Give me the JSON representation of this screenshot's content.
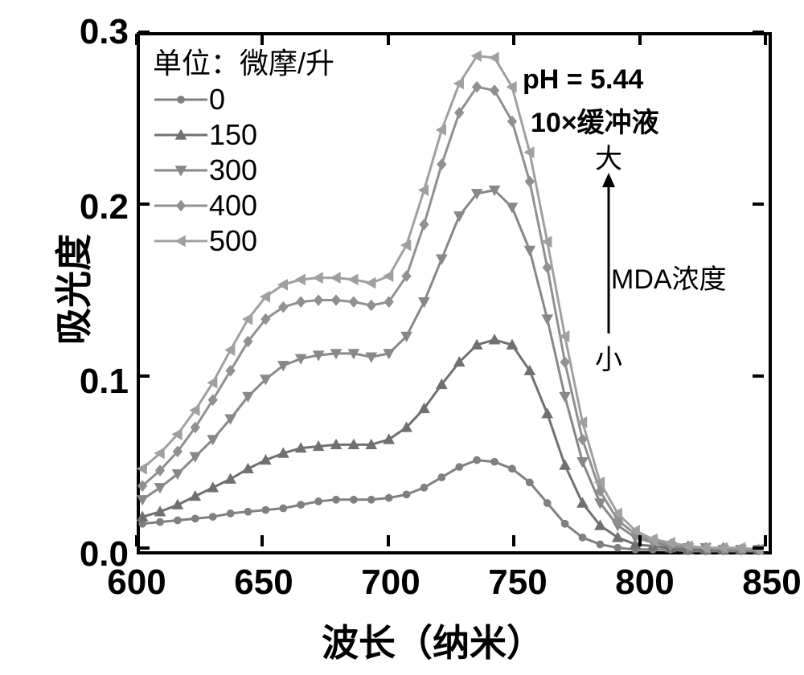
{
  "chart": {
    "type": "scatter-line",
    "xlabel": "波长（纳米）",
    "ylabel": "吸光度",
    "xlim": [
      600,
      850
    ],
    "ylim": [
      0.0,
      0.3
    ],
    "xticks": [
      600,
      650,
      700,
      750,
      800,
      850
    ],
    "yticks": [
      0.0,
      0.1,
      0.2,
      0.3
    ],
    "ytick_labels": [
      "0.0",
      "0.1",
      "0.2",
      "0.3"
    ],
    "background_color": "#ffffff",
    "border_color": "#000000",
    "border_width": 4,
    "label_fontsize": 46,
    "tick_fontsize": 44,
    "legend_fontsize": 36,
    "legend_title": "单位：微摩/升",
    "annotation_ph": "pH = 5.44",
    "annotation_buffer": "10×缓冲液",
    "annotation_big": "大",
    "annotation_conc": "MDA浓度",
    "annotation_small": "小",
    "series": [
      {
        "label": "0",
        "color": "#808080",
        "marker": "circle",
        "marker_size": 11,
        "line_width": 3,
        "x": [
          601,
          608,
          615,
          622,
          629,
          636,
          643,
          650,
          657,
          664,
          671,
          678,
          685,
          692,
          699,
          706,
          713,
          720,
          727,
          734,
          741,
          748,
          755,
          762,
          769,
          776,
          783,
          790,
          797,
          804,
          811,
          818,
          825,
          832,
          839,
          846
        ],
        "y": [
          0.016,
          0.017,
          0.018,
          0.019,
          0.02,
          0.022,
          0.023,
          0.024,
          0.025,
          0.027,
          0.029,
          0.03,
          0.03,
          0.03,
          0.031,
          0.033,
          0.037,
          0.043,
          0.049,
          0.053,
          0.052,
          0.048,
          0.04,
          0.028,
          0.016,
          0.008,
          0.004,
          0.002,
          0.001,
          0.001,
          0.001,
          0.0,
          0.0,
          0.0,
          0.0,
          0.0
        ]
      },
      {
        "label": "150",
        "color": "#707070",
        "marker": "triangle-up",
        "marker_size": 13,
        "line_width": 3,
        "x": [
          601,
          608,
          615,
          622,
          629,
          636,
          643,
          650,
          657,
          664,
          671,
          678,
          685,
          692,
          699,
          706,
          713,
          720,
          727,
          734,
          741,
          748,
          755,
          762,
          769,
          776,
          783,
          790,
          797,
          804,
          811,
          818,
          825,
          832,
          839,
          846
        ],
        "y": [
          0.02,
          0.023,
          0.027,
          0.032,
          0.037,
          0.042,
          0.048,
          0.053,
          0.057,
          0.06,
          0.061,
          0.062,
          0.062,
          0.062,
          0.065,
          0.072,
          0.083,
          0.097,
          0.11,
          0.12,
          0.123,
          0.12,
          0.105,
          0.08,
          0.05,
          0.028,
          0.015,
          0.008,
          0.004,
          0.003,
          0.002,
          0.001,
          0.001,
          0.001,
          0.001,
          0.001
        ]
      },
      {
        "label": "300",
        "color": "#888888",
        "marker": "triangle-down",
        "marker_size": 13,
        "line_width": 3,
        "x": [
          601,
          608,
          615,
          622,
          629,
          636,
          643,
          650,
          657,
          664,
          671,
          678,
          685,
          692,
          699,
          706,
          713,
          720,
          727,
          734,
          741,
          748,
          755,
          762,
          769,
          776,
          783,
          790,
          797,
          804,
          811,
          818,
          825,
          832,
          839,
          846
        ],
        "y": [
          0.03,
          0.037,
          0.045,
          0.055,
          0.065,
          0.077,
          0.09,
          0.1,
          0.108,
          0.112,
          0.114,
          0.115,
          0.115,
          0.113,
          0.115,
          0.125,
          0.145,
          0.17,
          0.195,
          0.208,
          0.21,
          0.2,
          0.175,
          0.135,
          0.09,
          0.052,
          0.028,
          0.015,
          0.008,
          0.005,
          0.003,
          0.002,
          0.002,
          0.001,
          0.001,
          0.001
        ]
      },
      {
        "label": "400",
        "color": "#909090",
        "marker": "diamond",
        "marker_size": 13,
        "line_width": 3,
        "x": [
          601,
          608,
          615,
          622,
          629,
          636,
          643,
          650,
          657,
          664,
          671,
          678,
          685,
          692,
          699,
          706,
          713,
          720,
          727,
          734,
          741,
          748,
          755,
          762,
          769,
          776,
          783,
          790,
          797,
          804,
          811,
          818,
          825,
          832,
          839,
          846
        ],
        "y": [
          0.038,
          0.047,
          0.058,
          0.072,
          0.088,
          0.105,
          0.122,
          0.135,
          0.142,
          0.145,
          0.146,
          0.146,
          0.145,
          0.143,
          0.145,
          0.16,
          0.19,
          0.225,
          0.255,
          0.27,
          0.268,
          0.25,
          0.215,
          0.165,
          0.11,
          0.065,
          0.035,
          0.018,
          0.01,
          0.006,
          0.004,
          0.003,
          0.002,
          0.002,
          0.001,
          0.001
        ]
      },
      {
        "label": "500",
        "color": "#a0a0a0",
        "marker": "triangle-left",
        "marker_size": 13,
        "line_width": 3,
        "x": [
          601,
          608,
          615,
          622,
          629,
          636,
          643,
          650,
          657,
          664,
          671,
          678,
          685,
          692,
          699,
          706,
          713,
          720,
          727,
          734,
          741,
          748,
          755,
          762,
          769,
          776,
          783,
          790,
          797,
          804,
          811,
          818,
          825,
          832,
          839,
          846
        ],
        "y": [
          0.048,
          0.057,
          0.068,
          0.082,
          0.098,
          0.117,
          0.135,
          0.148,
          0.155,
          0.158,
          0.159,
          0.159,
          0.158,
          0.156,
          0.16,
          0.178,
          0.21,
          0.245,
          0.272,
          0.288,
          0.287,
          0.27,
          0.232,
          0.18,
          0.125,
          0.075,
          0.04,
          0.022,
          0.012,
          0.007,
          0.005,
          0.003,
          0.002,
          0.002,
          0.002,
          0.001
        ]
      }
    ]
  }
}
